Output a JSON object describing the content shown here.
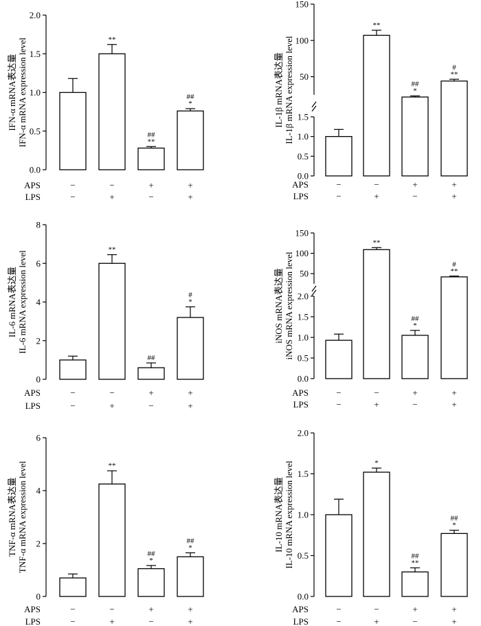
{
  "chart_data": [
    {
      "id": "ifn",
      "type": "bar",
      "ylabel_cn": "IFN-α mRNA表达量",
      "ylabel_en": "IFN-α mRNA expression level",
      "yticks": [
        "0.0",
        "0.5",
        "1.0",
        "1.5",
        "2.0"
      ],
      "ylim": [
        0,
        2
      ],
      "broken": false,
      "values": [
        1.0,
        1.5,
        0.28,
        0.76
      ],
      "errors": [
        0.18,
        0.12,
        0.02,
        0.03
      ],
      "annotations": [
        [],
        [
          "**"
        ],
        [
          "##",
          "**"
        ],
        [
          "##",
          "*"
        ]
      ],
      "rows": [
        {
          "label": "APS",
          "marks": [
            "−",
            "−",
            "+",
            "+"
          ]
        },
        {
          "label": "LPS",
          "marks": [
            "−",
            "+",
            "−",
            "+"
          ]
        }
      ]
    },
    {
      "id": "il1b",
      "type": "bar",
      "ylabel_cn": "IL-1β mRNA表达量",
      "ylabel_en": "IL-1β mRNA expression level",
      "yticks_lower": [
        "0.0",
        "0.5",
        "1.0",
        "1.5"
      ],
      "yticks_upper": [
        "50",
        "100",
        "150"
      ],
      "ylim_lower": [
        0,
        1.5
      ],
      "ylim_upper": [
        25,
        150
      ],
      "broken": true,
      "values": [
        1.0,
        107,
        22,
        44
      ],
      "errors": [
        0.18,
        7,
        1.5,
        2.5
      ],
      "annotations": [
        [],
        [
          "**"
        ],
        [
          "##",
          "*"
        ],
        [
          "#",
          "**"
        ]
      ],
      "rows": [
        {
          "label": "APS",
          "marks": [
            "−",
            "−",
            "+",
            "+"
          ]
        },
        {
          "label": "LPS",
          "marks": [
            "−",
            "+",
            "−",
            "+"
          ]
        }
      ]
    },
    {
      "id": "il6",
      "type": "bar",
      "ylabel_cn": "IL-6 mRNA表达量",
      "ylabel_en": "IL-6 mRNA expression level",
      "yticks": [
        "0",
        "2",
        "4",
        "6",
        "8"
      ],
      "ylim": [
        0,
        8
      ],
      "broken": false,
      "values": [
        1.0,
        6.0,
        0.6,
        3.2
      ],
      "errors": [
        0.2,
        0.45,
        0.25,
        0.55
      ],
      "annotations": [
        [],
        [
          "**"
        ],
        [
          "##"
        ],
        [
          "#",
          "*"
        ]
      ],
      "rows": [
        {
          "label": "APS",
          "marks": [
            "−",
            "−",
            "+",
            "+"
          ]
        },
        {
          "label": "LPS",
          "marks": [
            "−",
            "+",
            "−",
            "+"
          ]
        }
      ]
    },
    {
      "id": "inos",
      "type": "bar",
      "ylabel_cn": "iNOS mRNA表达量",
      "ylabel_en": "iNOS mRNA expression level",
      "yticks_lower": [
        "0.0",
        "0.5",
        "1.0",
        "1.5",
        "2.0"
      ],
      "yticks_upper": [
        "50",
        "100",
        "150"
      ],
      "ylim_lower": [
        0,
        2
      ],
      "ylim_upper": [
        25,
        150
      ],
      "broken": true,
      "values": [
        0.93,
        109,
        1.05,
        42
      ],
      "errors": [
        0.15,
        5,
        0.12,
        2
      ],
      "annotations": [
        [],
        [
          "**"
        ],
        [
          "##",
          "*"
        ],
        [
          "#",
          "**"
        ]
      ],
      "rows": [
        {
          "label": "APS",
          "marks": [
            "−",
            "−",
            "+",
            "+"
          ]
        },
        {
          "label": "LPS",
          "marks": [
            "−",
            "+",
            "−",
            "+"
          ]
        }
      ]
    },
    {
      "id": "tnf",
      "type": "bar",
      "ylabel_cn": "TNF-α mRNA表达量",
      "ylabel_en": "TNF-α mRNA expression level",
      "yticks": [
        "0",
        "2",
        "4",
        "6"
      ],
      "ylim": [
        0,
        6
      ],
      "broken": false,
      "values": [
        0.7,
        4.25,
        1.05,
        1.5
      ],
      "errors": [
        0.15,
        0.5,
        0.12,
        0.15
      ],
      "annotations": [
        [],
        [
          "**"
        ],
        [
          "##",
          "*"
        ],
        [
          "##",
          "*"
        ]
      ],
      "rows": [
        {
          "label": "APS",
          "marks": [
            "−",
            "−",
            "+",
            "+"
          ]
        },
        {
          "label": "LPS",
          "marks": [
            "−",
            "+",
            "−",
            "+"
          ]
        }
      ]
    },
    {
      "id": "il10",
      "type": "bar",
      "ylabel_cn": "IL-10 mRNA表达量",
      "ylabel_en": "IL-10 mRNA expression level",
      "yticks": [
        "0.0",
        "0.5",
        "1.0",
        "1.5",
        "2.0"
      ],
      "ylim": [
        0,
        2
      ],
      "broken": false,
      "values": [
        1.0,
        1.52,
        0.3,
        0.77
      ],
      "errors": [
        0.19,
        0.05,
        0.05,
        0.04
      ],
      "annotations": [
        [],
        [
          "*"
        ],
        [
          "##",
          "**"
        ],
        [
          "##",
          "*"
        ]
      ],
      "rows": [
        {
          "label": "APS",
          "marks": [
            "−",
            "−",
            "+",
            "+"
          ]
        },
        {
          "label": "LPS",
          "marks": [
            "−",
            "+",
            "−",
            "+"
          ]
        }
      ]
    }
  ]
}
